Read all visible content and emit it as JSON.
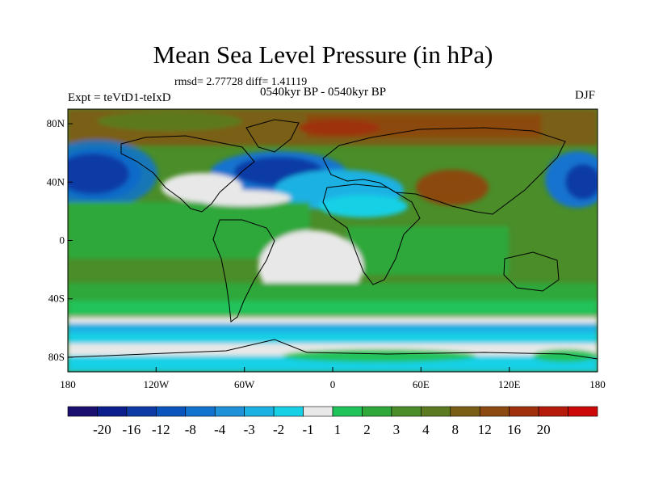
{
  "title": "Mean Sea Level Pressure (in hPa)",
  "subtitle": {
    "rmsd": "rmsd= 2.77728 diff= 1.41119",
    "left": "Expt = teVtD1-teIxD",
    "center": "0540kyr BP - 0540kyr BP",
    "right": "DJF"
  },
  "axes": {
    "lat_ticks": [
      {
        "label": "80N",
        "lat": 80
      },
      {
        "label": "40N",
        "lat": 40
      },
      {
        "label": "0",
        "lat": 0
      },
      {
        "label": "40S",
        "lat": -40
      },
      {
        "label": "80S",
        "lat": -80
      }
    ],
    "lon_ticks": [
      {
        "label": "180",
        "lon": -180
      },
      {
        "label": "120W",
        "lon": -120
      },
      {
        "label": "60W",
        "lon": -60
      },
      {
        "label": "0",
        "lon": 0
      },
      {
        "label": "60E",
        "lon": 60
      },
      {
        "label": "120E",
        "lon": 120
      },
      {
        "label": "180",
        "lon": 180
      }
    ],
    "lon_range": [
      -180,
      180
    ],
    "lat_range": [
      -90,
      90
    ]
  },
  "colorbar": {
    "colors": [
      "#1a0f6e",
      "#0c1e8c",
      "#0d3ba6",
      "#0a55bd",
      "#1273cf",
      "#1e91d9",
      "#1cb1e3",
      "#16d0e6",
      "#e8e8e8",
      "#20c35a",
      "#2ea83a",
      "#4a8d29",
      "#5c7a1e",
      "#7a5e14",
      "#8c4a10",
      "#9e300c",
      "#b51a0a",
      "#cc0808"
    ],
    "labels": [
      "-20",
      "-16",
      "-12",
      "-8",
      "-4",
      "-3",
      "-2",
      "-1",
      "1",
      "2",
      "3",
      "4",
      "8",
      "12",
      "16",
      "20"
    ]
  },
  "map_colors": {
    "deep_blue": "#0d3ba6",
    "mid_blue": "#1273cf",
    "light_blue": "#1cb1e3",
    "cyan": "#16d0e6",
    "neutral": "#e8e8e8",
    "light_green": "#20c35a",
    "green": "#2ea83a",
    "olive": "#4a8d29",
    "dark_olive": "#5c7a1e",
    "brown": "#7a5e14",
    "dark_brown": "#8c4a10",
    "red_brown": "#9e300c"
  }
}
